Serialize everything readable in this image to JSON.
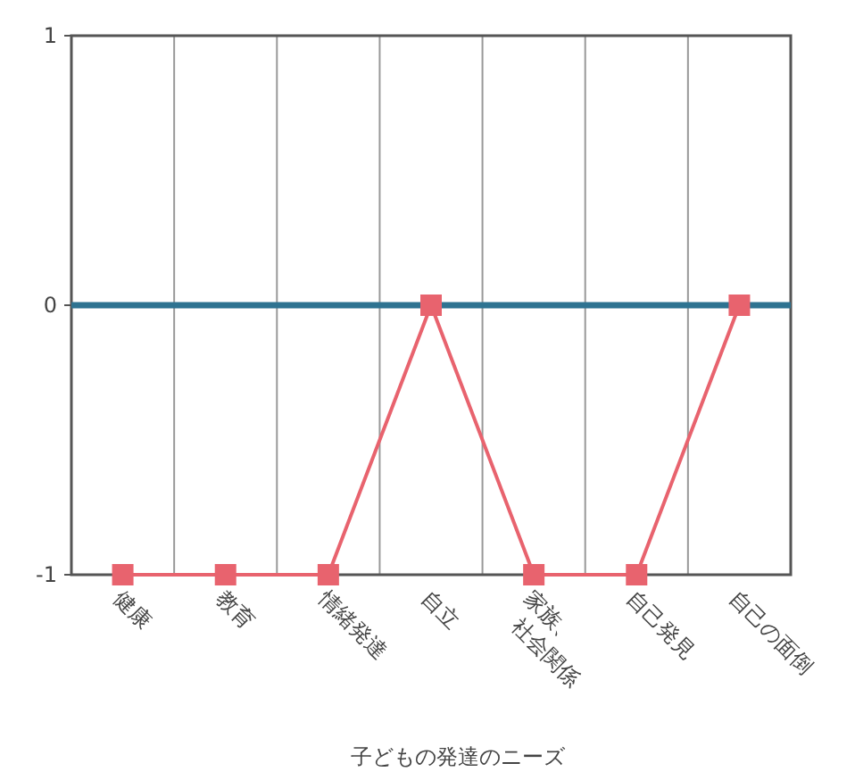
{
  "chart_data": {
    "type": "line",
    "xlabel": "子どもの発達のニーズ",
    "categories": [
      "健康",
      "教育",
      "情緒発達",
      "自立",
      "家族、\n社会関係",
      "自己発見",
      "自己の面倒"
    ],
    "series": [
      {
        "color": "#e8636e",
        "values": [
          -1,
          -1,
          -1,
          0,
          -1,
          -1,
          0
        ]
      }
    ],
    "marker": "square",
    "ylim": [
      -1,
      1
    ],
    "yticks": [
      -1,
      0,
      1
    ],
    "grid": "x",
    "ref_lines": [
      {
        "axis": "y",
        "value": 0,
        "color": "#2e7391"
      }
    ]
  }
}
